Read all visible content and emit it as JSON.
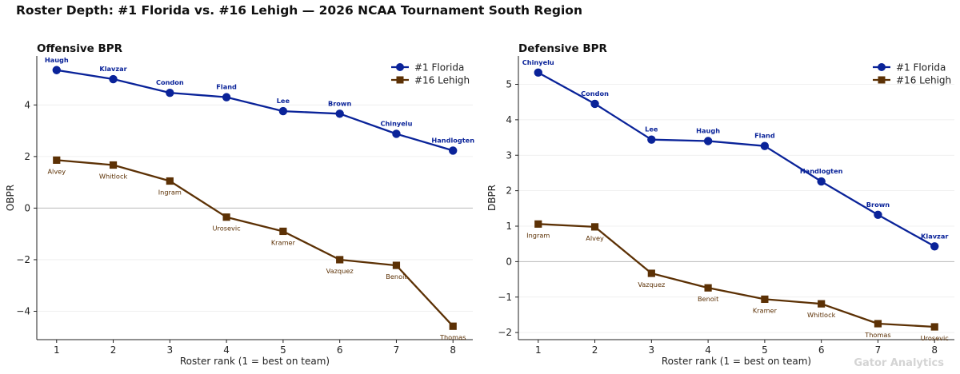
{
  "suptitle": "Roster Depth: #1 Florida vs. #16 Lehigh  —  2026 NCAA Tournament South Region",
  "watermark": "Gator Analytics",
  "colors": {
    "florida": "#0a2399",
    "lehigh": "#5c3105",
    "zero_line": "#bbbbbb",
    "grid": "#ebebeb"
  },
  "chart_data": [
    {
      "type": "line",
      "title": "Offensive BPR",
      "xlabel": "Roster rank (1 = best on team)",
      "ylabel": "OBPR",
      "x": [
        1,
        2,
        3,
        4,
        5,
        6,
        7,
        8
      ],
      "xlim": [
        0.65,
        8.35
      ],
      "ylim": [
        -5.1,
        5.9
      ],
      "yticks": [
        -4,
        -2,
        0,
        2,
        4
      ],
      "grid": true,
      "legend": "top-right",
      "series": [
        {
          "name": "#1 Florida",
          "marker": "circle",
          "values": [
            5.35,
            5.0,
            4.47,
            4.3,
            3.76,
            3.66,
            2.88,
            2.23
          ],
          "labels": [
            "Haugh",
            "Klavzar",
            "Condon",
            "Fland",
            "Lee",
            "Brown",
            "Chinyelu",
            "Handlogten"
          ]
        },
        {
          "name": "#16 Lehigh",
          "marker": "square",
          "values": [
            1.86,
            1.67,
            1.05,
            -0.35,
            -0.9,
            -2.0,
            -2.22,
            -4.58
          ],
          "labels": [
            "Alvey",
            "Whitlock",
            "Ingram",
            "Urosevic",
            "Kramer",
            "Vazquez",
            "Benoit",
            "Thomas"
          ]
        }
      ]
    },
    {
      "type": "line",
      "title": "Defensive BPR",
      "xlabel": "Roster rank (1 = best on team)",
      "ylabel": "DBPR",
      "x": [
        1,
        2,
        3,
        4,
        5,
        6,
        7,
        8
      ],
      "xlim": [
        0.65,
        8.35
      ],
      "ylim": [
        -2.2,
        5.8
      ],
      "yticks": [
        -2,
        -1,
        0,
        1,
        2,
        3,
        4,
        5
      ],
      "grid": true,
      "legend": "top-right",
      "series": [
        {
          "name": "#1 Florida",
          "marker": "circle",
          "values": [
            5.33,
            4.45,
            3.44,
            3.4,
            3.26,
            2.26,
            1.32,
            0.43
          ],
          "labels": [
            "Chinyelu",
            "Condon",
            "Lee",
            "Haugh",
            "Fland",
            "Handlogten",
            "Brown",
            "Klavzar"
          ]
        },
        {
          "name": "#16 Lehigh",
          "marker": "square",
          "values": [
            1.06,
            0.98,
            -0.33,
            -0.74,
            -1.06,
            -1.19,
            -1.75,
            -1.84
          ],
          "labels": [
            "Ingram",
            "Alvey",
            "Vazquez",
            "Benoit",
            "Kramer",
            "Whitlock",
            "Thomas",
            "Urosevic"
          ]
        }
      ]
    }
  ]
}
